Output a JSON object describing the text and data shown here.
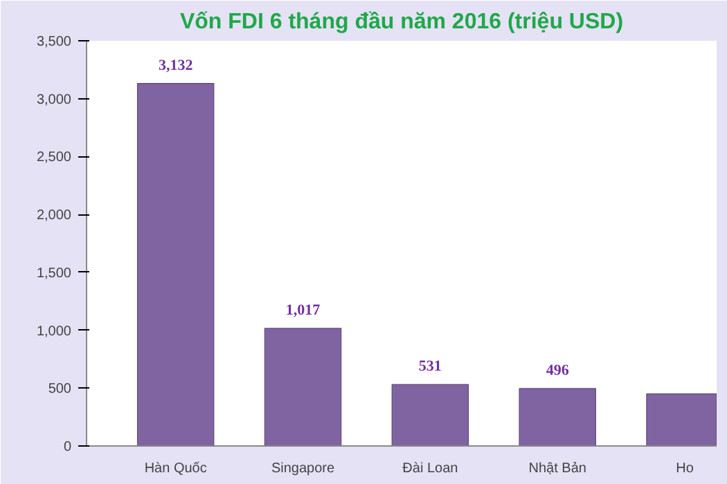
{
  "chart_data": {
    "type": "bar",
    "title": "Vốn FDI 6 tháng đầu năm 2016 (triệu USD)",
    "categories": [
      "Hàn Quốc",
      "Singapore",
      "Đài Loan",
      "Nhật Bản",
      "Ho"
    ],
    "values": [
      3132,
      1017,
      531,
      496,
      450
    ],
    "value_labels": [
      "3,132",
      "1,017",
      "531",
      "496",
      null
    ],
    "color": "#8064a2",
    "ylim": [
      0,
      3500
    ],
    "yticks": [
      {
        "value": 0,
        "label": "0"
      },
      {
        "value": 500,
        "label": "500"
      },
      {
        "value": 1000,
        "label": "1,000"
      },
      {
        "value": 1500,
        "label": "1,500"
      },
      {
        "value": 2000,
        "label": "2,000"
      },
      {
        "value": 2500,
        "label": "2,500"
      },
      {
        "value": 3000,
        "label": "3,000"
      },
      {
        "value": 3500,
        "label": "3,500"
      }
    ],
    "grid": false
  }
}
